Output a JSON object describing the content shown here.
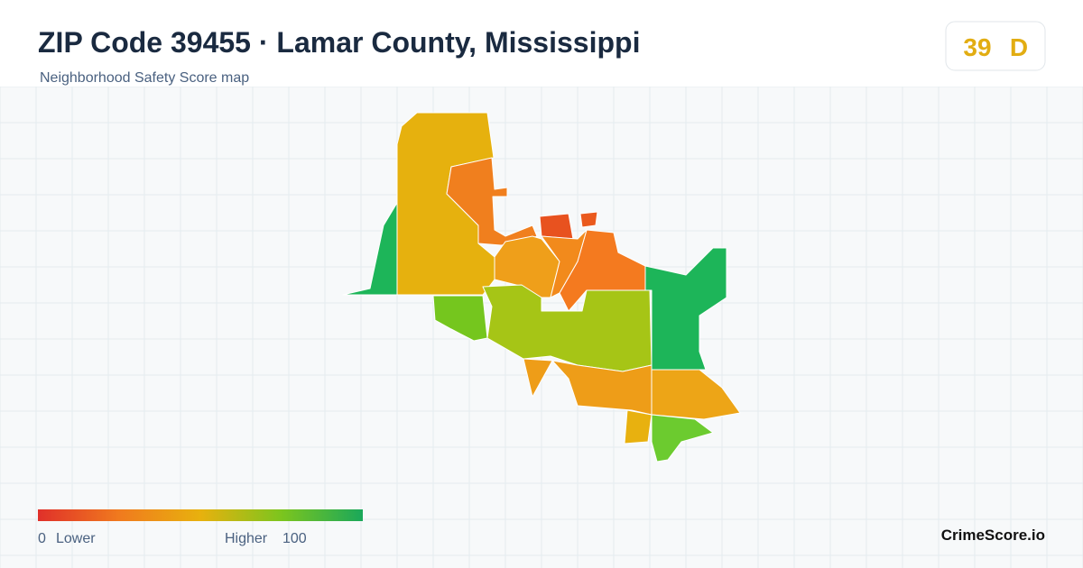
{
  "header": {
    "title": "ZIP Code 39455 · Lamar County, Mississippi",
    "subtitle": "Neighborhood Safety Score map"
  },
  "score": {
    "value": "39",
    "grade": "D"
  },
  "legend": {
    "min": "0",
    "min_label": "Lower",
    "max_label": "Higher",
    "max": "100"
  },
  "brand": "CrimeScore.io"
}
